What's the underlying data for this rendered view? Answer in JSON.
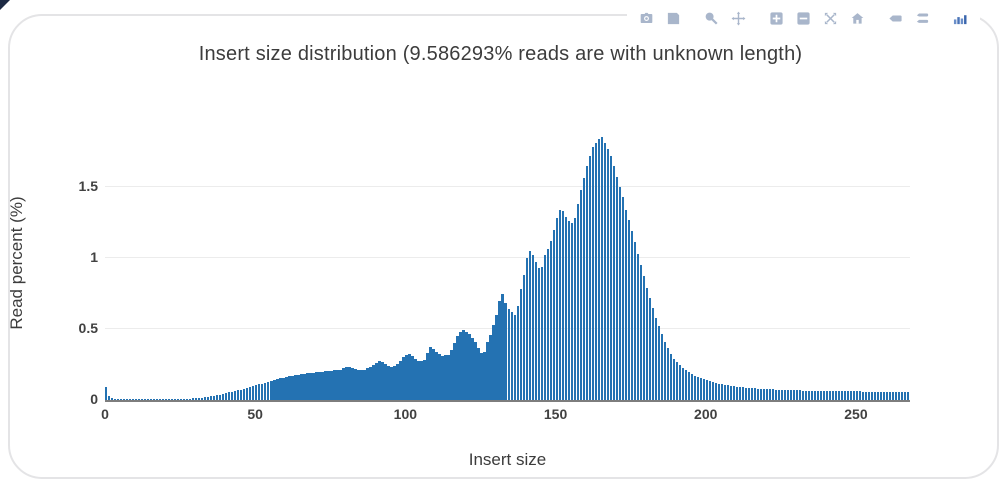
{
  "modebar": {
    "icons": [
      "camera",
      "save",
      "zoom",
      "pan",
      "zoom-in",
      "zoom-out",
      "autoscale",
      "home",
      "hover-closest",
      "hover-compare",
      "plotly-logo"
    ],
    "groups": [
      2,
      4,
      8,
      10
    ]
  },
  "colors": {
    "bar": "#2472b2",
    "grid": "#ececec",
    "axis_line": "#7d7d7d",
    "tick_label": "#414141",
    "title_text": "#3c3c3c",
    "modebar_icon": "#a9b6cb",
    "logo_blue_dark": "#3a66ad",
    "logo_blue_mid": "#4a74b8",
    "logo_blue_light": "#6b8fc9"
  },
  "chart_data": {
    "type": "bar",
    "title": "Insert size distribution (9.586293% reads are with unknown length)",
    "xlabel": "Insert size",
    "ylabel": "Read percent (%)",
    "x_start": 0,
    "bin_width": 1,
    "x_ticks": [
      0,
      50,
      100,
      150,
      200,
      250
    ],
    "y_ticks": [
      0,
      0.5,
      1,
      1.5
    ],
    "xlim": [
      0,
      268
    ],
    "ylim": [
      0,
      2.1
    ],
    "grid": true,
    "legend": "none",
    "values": [
      0.09,
      0.025,
      0.012,
      0.008,
      0.006,
      0.005,
      0.005,
      0.004,
      0.004,
      0.004,
      0.004,
      0.004,
      0.004,
      0.004,
      0.004,
      0.004,
      0.004,
      0.004,
      0.005,
      0.005,
      0.005,
      0.005,
      0.006,
      0.006,
      0.007,
      0.007,
      0.008,
      0.009,
      0.01,
      0.011,
      0.013,
      0.015,
      0.017,
      0.02,
      0.023,
      0.026,
      0.03,
      0.034,
      0.038,
      0.043,
      0.048,
      0.053,
      0.058,
      0.063,
      0.068,
      0.074,
      0.08,
      0.086,
      0.092,
      0.098,
      0.104,
      0.11,
      0.116,
      0.122,
      0.128,
      0.134,
      0.14,
      0.146,
      0.152,
      0.157,
      0.162,
      0.166,
      0.17,
      0.174,
      0.178,
      0.181,
      0.184,
      0.187,
      0.19,
      0.193,
      0.196,
      0.198,
      0.2,
      0.202,
      0.204,
      0.206,
      0.208,
      0.21,
      0.213,
      0.222,
      0.23,
      0.235,
      0.228,
      0.22,
      0.212,
      0.21,
      0.214,
      0.222,
      0.232,
      0.248,
      0.262,
      0.272,
      0.268,
      0.256,
      0.238,
      0.23,
      0.238,
      0.256,
      0.275,
      0.3,
      0.318,
      0.322,
      0.31,
      0.29,
      0.278,
      0.272,
      0.285,
      0.33,
      0.37,
      0.36,
      0.34,
      0.322,
      0.31,
      0.315,
      0.32,
      0.35,
      0.4,
      0.45,
      0.48,
      0.49,
      0.48,
      0.465,
      0.44,
      0.41,
      0.365,
      0.33,
      0.34,
      0.41,
      0.46,
      0.53,
      0.6,
      0.7,
      0.75,
      0.68,
      0.64,
      0.62,
      0.6,
      0.66,
      0.78,
      0.88,
      1.0,
      1.05,
      1.02,
      0.97,
      0.93,
      0.94,
      1.02,
      1.06,
      1.12,
      1.2,
      1.28,
      1.34,
      1.33,
      1.29,
      1.26,
      1.25,
      1.28,
      1.38,
      1.48,
      1.56,
      1.65,
      1.72,
      1.78,
      1.81,
      1.84,
      1.85,
      1.81,
      1.77,
      1.72,
      1.65,
      1.57,
      1.5,
      1.43,
      1.34,
      1.27,
      1.19,
      1.11,
      1.03,
      0.95,
      0.87,
      0.79,
      0.715,
      0.645,
      0.58,
      0.52,
      0.462,
      0.41,
      0.365,
      0.325,
      0.292,
      0.268,
      0.247,
      0.228,
      0.21,
      0.196,
      0.183,
      0.172,
      0.162,
      0.153,
      0.145,
      0.138,
      0.131,
      0.125,
      0.12,
      0.115,
      0.111,
      0.107,
      0.103,
      0.1,
      0.097,
      0.094,
      0.092,
      0.09,
      0.088,
      0.086,
      0.084,
      0.082,
      0.081,
      0.08,
      0.078,
      0.077,
      0.076,
      0.075,
      0.074,
      0.073,
      0.072,
      0.071,
      0.07,
      0.07,
      0.069,
      0.068,
      0.068,
      0.067,
      0.067,
      0.066,
      0.066,
      0.065,
      0.065,
      0.064,
      0.064,
      0.063,
      0.063,
      0.062,
      0.062,
      0.062,
      0.061,
      0.061,
      0.061,
      0.06,
      0.06,
      0.06,
      0.06,
      0.059,
      0.059,
      0.059,
      0.059,
      0.058,
      0.058,
      0.058,
      0.058,
      0.057,
      0.057,
      0.057,
      0.057,
      0.057,
      0.056,
      0.056,
      0.056
    ]
  }
}
